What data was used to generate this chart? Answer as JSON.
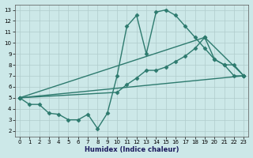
{
  "bg_color": "#cce8e8",
  "grid_color": "#b0cccc",
  "line_color": "#2d7a6e",
  "xlabel": "Humidex (Indice chaleur)",
  "xlim": [
    -0.5,
    23.5
  ],
  "ylim": [
    1.5,
    13.5
  ],
  "xticks": [
    0,
    1,
    2,
    3,
    4,
    5,
    6,
    7,
    8,
    9,
    10,
    11,
    12,
    13,
    14,
    15,
    16,
    17,
    18,
    19,
    20,
    21,
    22,
    23
  ],
  "yticks": [
    2,
    3,
    4,
    5,
    6,
    7,
    8,
    9,
    10,
    11,
    12,
    13
  ],
  "lines": [
    {
      "x": [
        0,
        1,
        2,
        3,
        4,
        5,
        6,
        7,
        8,
        9,
        10,
        11,
        12,
        13,
        14,
        15,
        16,
        17,
        18,
        19,
        20,
        21,
        22,
        23
      ],
      "y": [
        5.0,
        4.4,
        4.4,
        3.6,
        3.5,
        3.0,
        3.0,
        3.5,
        2.2,
        3.6,
        7.0,
        11.5,
        12.5,
        9.0,
        12.8,
        13.0,
        12.5,
        11.5,
        10.5,
        9.5,
        8.5,
        8.0,
        7.0,
        7.0
      ]
    },
    {
      "x": [
        0,
        10,
        11,
        12,
        13,
        14,
        15,
        16,
        17,
        18,
        19,
        20,
        21,
        22,
        23
      ],
      "y": [
        5.0,
        5.5,
        6.2,
        6.8,
        7.5,
        7.5,
        7.8,
        8.3,
        8.8,
        9.5,
        10.5,
        8.5,
        8.0,
        8.0,
        7.0
      ]
    },
    {
      "x": [
        0,
        19,
        23
      ],
      "y": [
        5.0,
        10.5,
        7.0
      ]
    },
    {
      "x": [
        0,
        23
      ],
      "y": [
        5.0,
        7.0
      ]
    }
  ],
  "marker": "D",
  "markersize": 2.5,
  "linewidth": 1.0
}
